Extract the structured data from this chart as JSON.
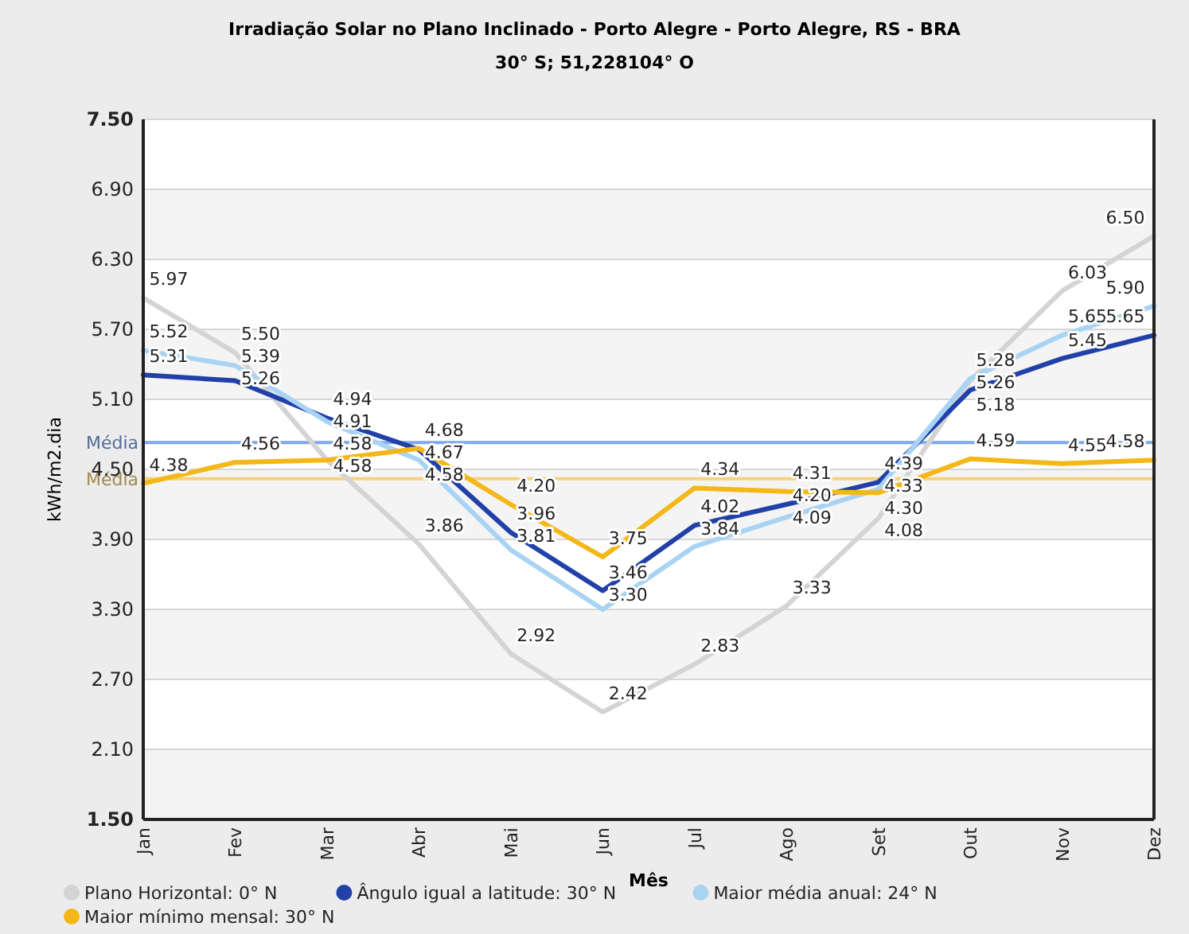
{
  "chart_data": {
    "type": "line",
    "title": "Irradiação Solar no Plano Inclinado - Porto Alegre - Porto Alegre, RS - BRA",
    "subtitle": "30° S;  51,228104° O",
    "xlabel": "Mês",
    "ylabel": "kWh/m2.dia",
    "categories": [
      "Jan",
      "Fev",
      "Mar",
      "Abr",
      "Mai",
      "Jun",
      "Jul",
      "Ago",
      "Set",
      "Out",
      "Nov",
      "Dez"
    ],
    "series": [
      {
        "name": "Plano Horizontal: 0° N",
        "color": "#d4d4d4",
        "values": [
          5.97,
          5.5,
          4.58,
          3.86,
          2.92,
          2.42,
          2.83,
          3.33,
          4.08,
          5.26,
          6.03,
          6.5
        ],
        "value_labels": [
          "5.97",
          "5.50",
          "4.58",
          "3.86",
          "2.92",
          "2.42",
          "2.83",
          "3.33",
          "4.08",
          "5.26",
          "6.03",
          "6.50"
        ]
      },
      {
        "name": "Ângulo igual a latitude: 30° N",
        "color": "#2140a8",
        "values": [
          5.31,
          5.26,
          4.94,
          4.67,
          3.96,
          3.46,
          4.02,
          4.2,
          4.39,
          5.18,
          5.45,
          5.65
        ],
        "value_labels": [
          "5.31",
          "5.26",
          "4.94",
          "4.67",
          "3.96",
          "3.46",
          "4.02",
          "4.20",
          "4.39",
          "5.18",
          "5.45",
          "5.65"
        ]
      },
      {
        "name": "Maior média anual: 24° N",
        "color": "#a9d3f3",
        "values": [
          5.52,
          5.39,
          4.91,
          4.58,
          3.81,
          3.3,
          3.84,
          4.09,
          4.33,
          5.28,
          5.65,
          5.9
        ],
        "value_labels": [
          "5.52",
          "5.39",
          "4.91",
          "4.58",
          "3.81",
          "3.30",
          "3.84",
          "4.09",
          "4.33",
          "5.28",
          "5.65",
          "5.90"
        ]
      },
      {
        "name": "Maior mínimo mensal: 30° N",
        "color": "#f4b718",
        "values": [
          4.38,
          4.56,
          4.58,
          4.68,
          4.2,
          3.75,
          4.34,
          4.31,
          4.3,
          4.59,
          4.55,
          4.58
        ],
        "value_labels": [
          "4.38",
          "4.56",
          "4.58",
          "4.68",
          "4.20",
          "3.75",
          "4.34",
          "4.31",
          "4.30",
          "4.59",
          "4.55",
          "4.58"
        ]
      }
    ],
    "ylim": [
      1.5,
      7.5
    ],
    "yticks": [
      {
        "value": 1.5,
        "label": "1.50"
      },
      {
        "value": 2.1,
        "label": "2.10"
      },
      {
        "value": 2.7,
        "label": "2.70"
      },
      {
        "value": 3.3,
        "label": "3.30"
      },
      {
        "value": 3.9,
        "label": "3.90"
      },
      {
        "value": 4.5,
        "label": "4.50"
      },
      {
        "value": 5.1,
        "label": "5.10"
      },
      {
        "value": 5.7,
        "label": "5.70"
      },
      {
        "value": 6.3,
        "label": "6.30"
      },
      {
        "value": 6.9,
        "label": "6.90"
      },
      {
        "value": 7.5,
        "label": "7.50"
      }
    ],
    "ref_lines": [
      {
        "axis": "y",
        "value": 4.73,
        "label": "Média",
        "color": "#7fa7e8"
      },
      {
        "axis": "y",
        "value": 4.42,
        "label": "Média",
        "color": "#f6d37a"
      }
    ],
    "grid": "y",
    "legend": "bottom",
    "marker": "none",
    "line_style": "solid"
  }
}
